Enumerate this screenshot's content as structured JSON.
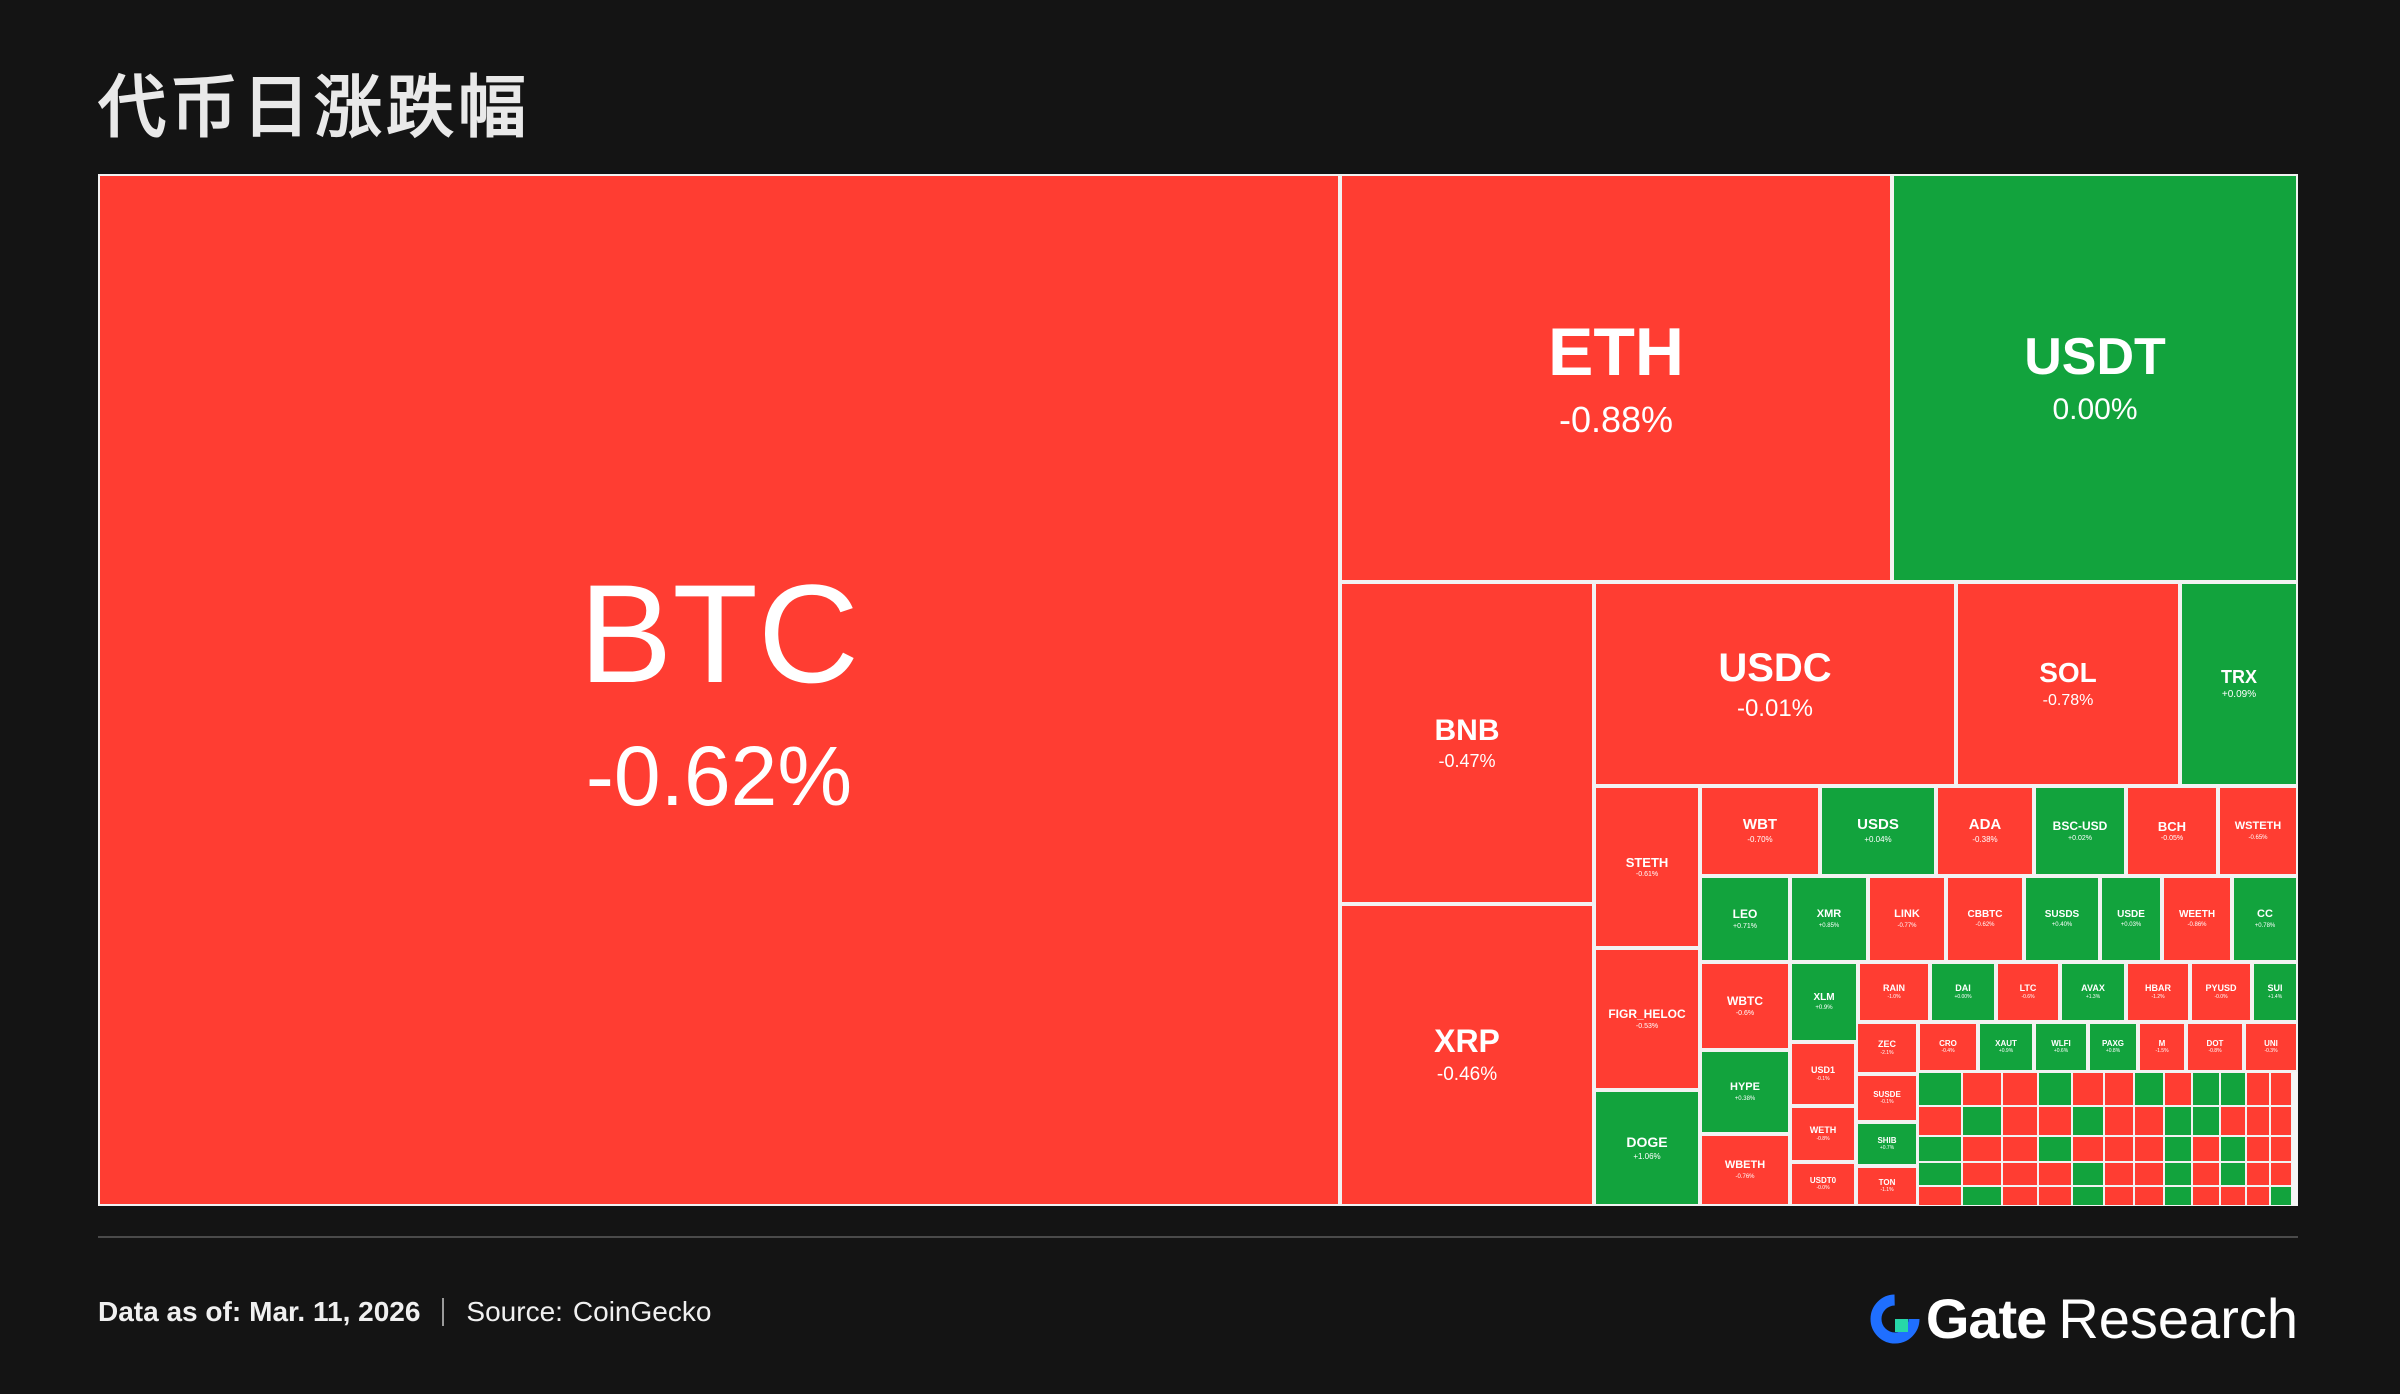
{
  "page": {
    "title": "代币日涨跌幅"
  },
  "colors": {
    "down": "#ff3d32",
    "up": "#12a33d",
    "down_dark": "#c42a2a",
    "up_dark": "#0b6e2b"
  },
  "chart_data": {
    "type": "treemap",
    "title": "代币日涨跌幅",
    "tiles": [
      {
        "symbol": "BTC",
        "change": "-0.62%"
      },
      {
        "symbol": "ETH",
        "change": "-0.88%"
      },
      {
        "symbol": "USDT",
        "change": "0.00%"
      },
      {
        "symbol": "BNB",
        "change": "-0.47%"
      },
      {
        "symbol": "XRP",
        "change": "-0.46%"
      },
      {
        "symbol": "USDC",
        "change": "-0.01%"
      },
      {
        "symbol": "SOL",
        "change": "-0.78%"
      },
      {
        "symbol": "TRX",
        "change": "+0.09%"
      },
      {
        "symbol": "STETH",
        "change": "-0.61%"
      },
      {
        "symbol": "FIGR_HELOC",
        "change": "-0.53%"
      },
      {
        "symbol": "DOGE",
        "change": "+1.06%"
      },
      {
        "symbol": "WBT",
        "change": "-0.70%"
      },
      {
        "symbol": "USDS",
        "change": "+0.04%"
      },
      {
        "symbol": "ADA",
        "change": "-0.38%"
      },
      {
        "symbol": "BSC-USD",
        "change": "+0.02%"
      },
      {
        "symbol": "BCH",
        "change": "-0.05%"
      },
      {
        "symbol": "WSTETH",
        "change": "-0.65%"
      },
      {
        "symbol": "LEO",
        "change": "+0.71%"
      },
      {
        "symbol": "XMR",
        "change": "+0.85%"
      },
      {
        "symbol": "LINK",
        "change": "-0.77%"
      },
      {
        "symbol": "CBBTC",
        "change": "-0.62%"
      },
      {
        "symbol": "SUSDS",
        "change": "+0.40%"
      },
      {
        "symbol": "USDE",
        "change": "+0.03%"
      },
      {
        "symbol": "WEETH",
        "change": "-0.86%"
      },
      {
        "symbol": "CC",
        "change": "+0.78%"
      },
      {
        "symbol": "WBTC",
        "change": "-0.6%"
      },
      {
        "symbol": "XLM",
        "change": "+0.9%"
      },
      {
        "symbol": "RAIN",
        "change": "-1.0%"
      },
      {
        "symbol": "DAI",
        "change": "+0.00%"
      },
      {
        "symbol": "LTC",
        "change": "-0.6%"
      },
      {
        "symbol": "AVAX",
        "change": "+1.3%"
      },
      {
        "symbol": "HBAR",
        "change": "-1.2%"
      },
      {
        "symbol": "PYUSD",
        "change": "-0.0%"
      },
      {
        "symbol": "SUI",
        "change": "+1.4%"
      },
      {
        "symbol": "HYPE",
        "change": "+0.38%"
      },
      {
        "symbol": "WBETH",
        "change": "-0.76%"
      },
      {
        "symbol": "USD1",
        "change": "-0.1%"
      },
      {
        "symbol": "WETH",
        "change": "-0.8%"
      },
      {
        "symbol": "USDT0",
        "change": "-0.0%"
      },
      {
        "symbol": "ZEC",
        "change": "-2.1%"
      },
      {
        "symbol": "SUSDE",
        "change": "-0.1%"
      },
      {
        "symbol": "SHIB",
        "change": "+0.7%"
      },
      {
        "symbol": "TON",
        "change": "-1.1%"
      },
      {
        "symbol": "CRO",
        "change": "-0.4%"
      },
      {
        "symbol": "XAUT",
        "change": "+0.9%"
      },
      {
        "symbol": "WLFI",
        "change": "+0.6%"
      },
      {
        "symbol": "PAXG",
        "change": "+0.8%"
      },
      {
        "symbol": "M",
        "change": "-1.5%"
      },
      {
        "symbol": "DOT",
        "change": "-0.8%"
      },
      {
        "symbol": "UNI",
        "change": "-0.3%"
      }
    ]
  },
  "footer": {
    "date_label": "Data as of:",
    "date_value": "Mar. 11, 2026",
    "source_label": "Source:",
    "source_value": "CoinGecko",
    "brand_gate": "Gate",
    "brand_research": "Research"
  }
}
